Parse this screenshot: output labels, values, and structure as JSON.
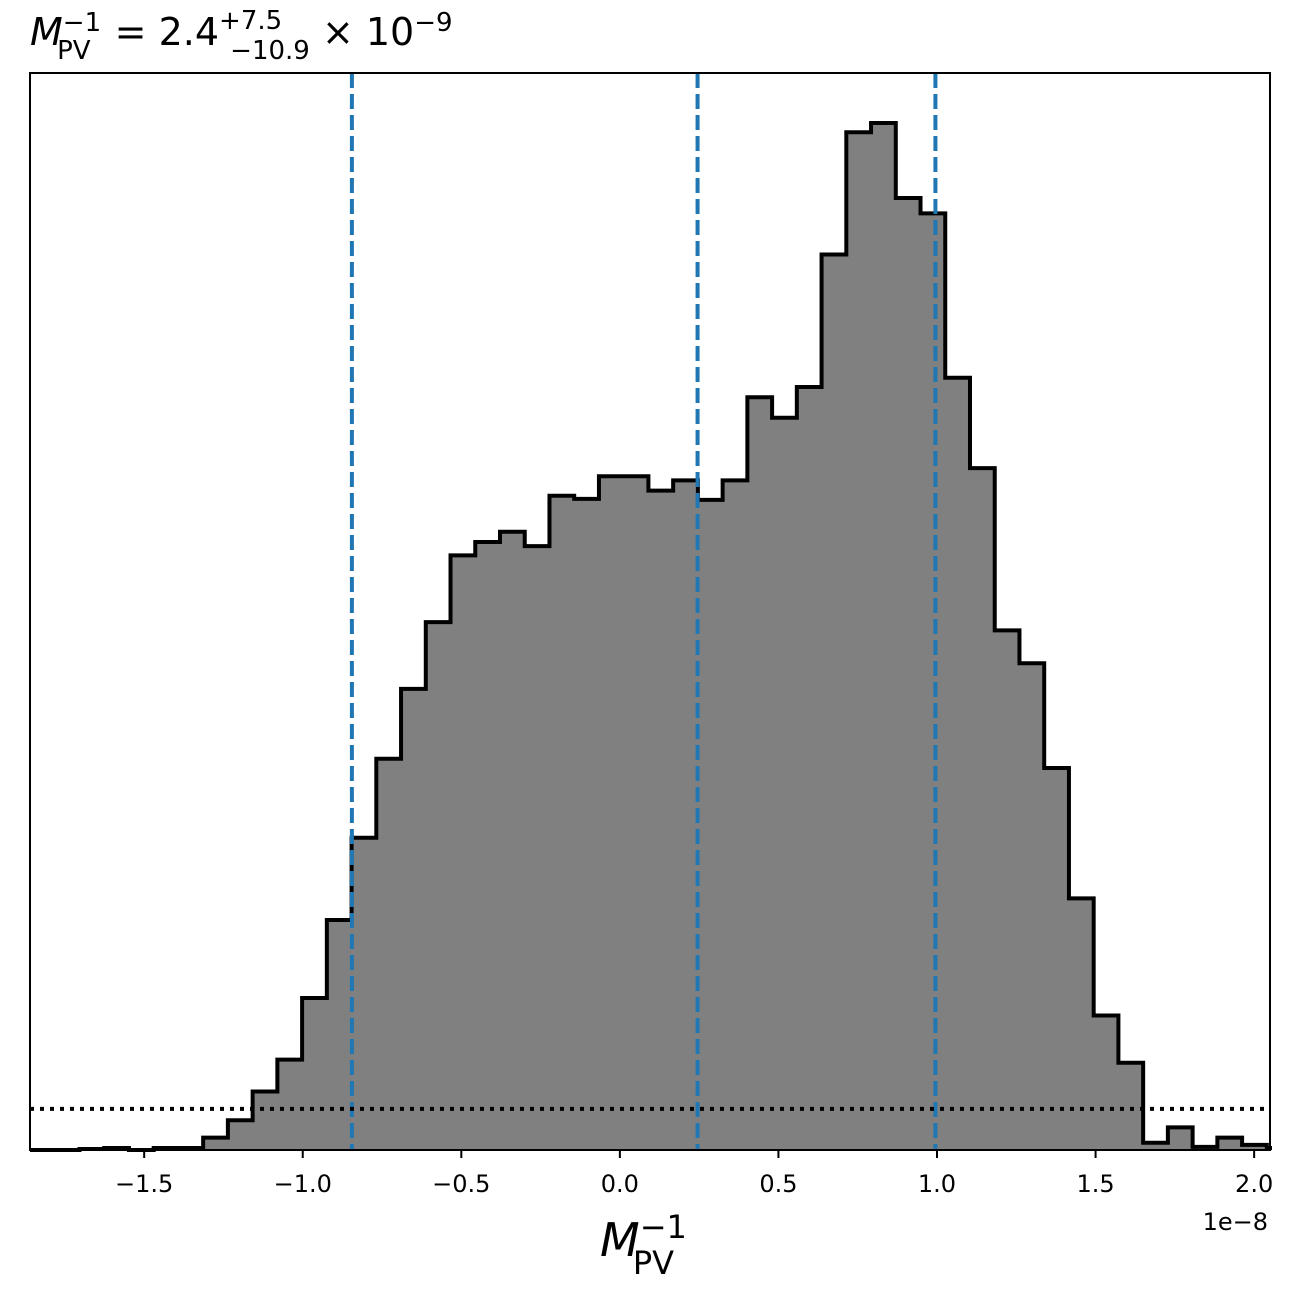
{
  "chart_data": {
    "type": "bar",
    "title": {
      "symbol": "M",
      "sub": "PV",
      "sup": "−1",
      "equals": " = ",
      "value": "2.4",
      "err_plus": "+7.5",
      "err_minus": "−10.9",
      "times": " × 10",
      "exponent": "−9"
    },
    "xlabel": {
      "symbol": "M",
      "sub": "PV",
      "sup": "−1"
    },
    "x_offset_label": "1e−8",
    "xlim": [
      -1.86e-08,
      2.05e-08
    ],
    "ylim": [
      0,
      1.0
    ],
    "x_ticks": [
      -1.5e-08,
      -1e-08,
      -5e-09,
      0.0,
      5e-09,
      1e-08,
      1.5e-08,
      2e-08
    ],
    "x_tick_labels": [
      "−1.5",
      "−1.0",
      "−0.5",
      "0.0",
      "0.5",
      "1.0",
      "1.5",
      "2.0"
    ],
    "bin_start": -1.86e-08,
    "bin_width": 7.8e-10,
    "counts": [
      0.0,
      0.0,
      0.001,
      0.002,
      0.0,
      0.002,
      0.002,
      0.012,
      0.029,
      0.057,
      0.088,
      0.148,
      0.224,
      0.304,
      0.381,
      0.449,
      0.514,
      0.579,
      0.592,
      0.602,
      0.588,
      0.637,
      0.634,
      0.656,
      0.656,
      0.642,
      0.652,
      0.633,
      0.652,
      0.733,
      0.713,
      0.743,
      0.872,
      0.991,
      1.0,
      0.927,
      0.912,
      0.752,
      0.664,
      0.506,
      0.474,
      0.372,
      0.245,
      0.131,
      0.085,
      0.007,
      0.022,
      0.003,
      0.012,
      0.005,
      0.002,
      0.0
    ],
    "hist_fill": "#808080",
    "hist_edge": "#000000",
    "vlines": [
      -8.45e-09,
      2.45e-09,
      9.95e-09
    ],
    "vline_color": "#1f77b4",
    "hline": 0.04,
    "hline_color": "#000000",
    "grid": false
  }
}
